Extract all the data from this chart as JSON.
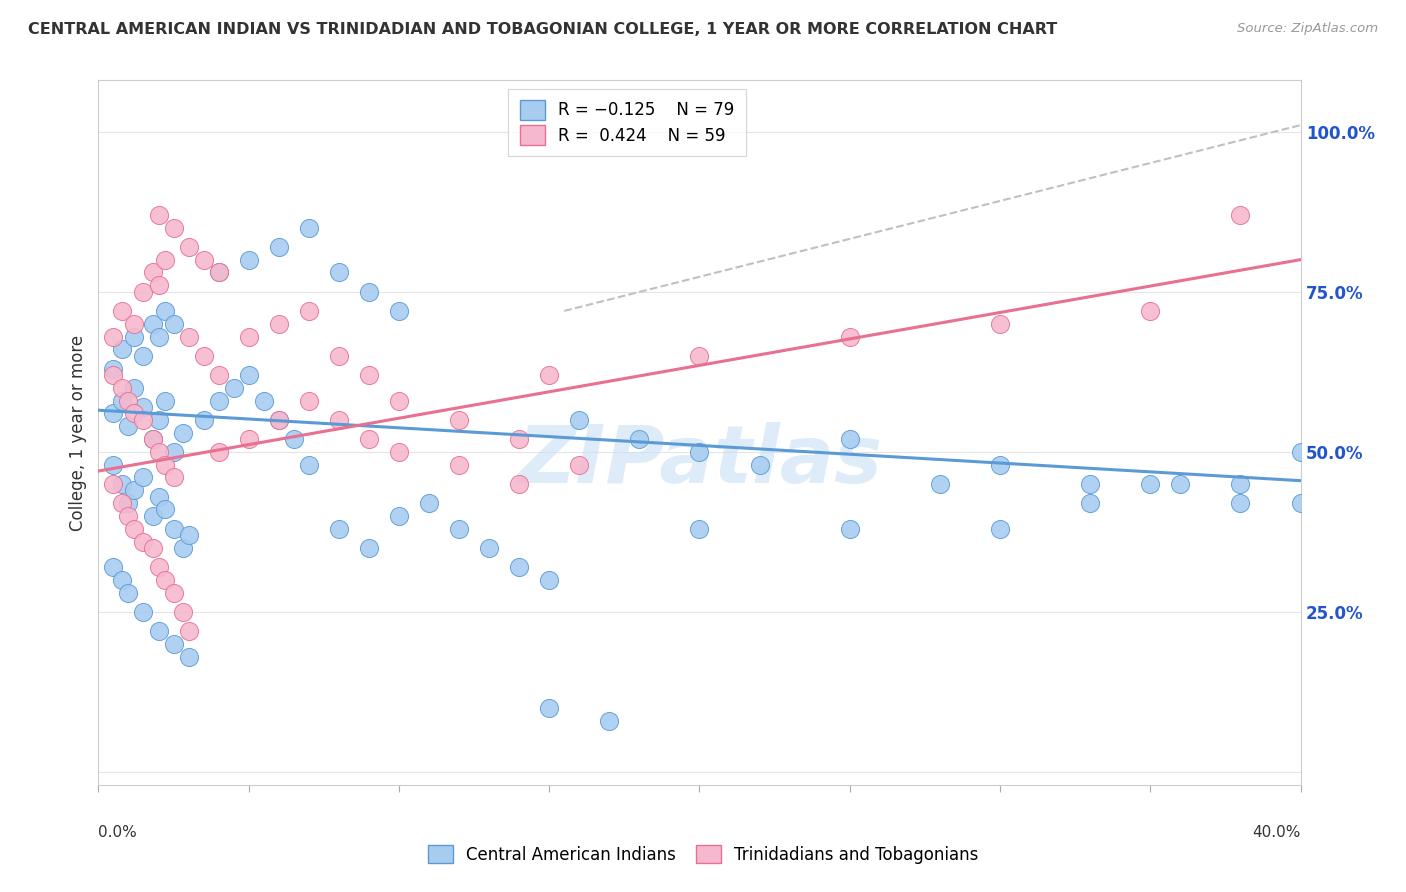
{
  "title": "CENTRAL AMERICAN INDIAN VS TRINIDADIAN AND TOBAGONIAN COLLEGE, 1 YEAR OR MORE CORRELATION CHART",
  "source": "Source: ZipAtlas.com",
  "ylabel": "College, 1 year or more",
  "y_ticks": [
    0.0,
    0.25,
    0.5,
    0.75,
    1.0
  ],
  "y_tick_labels": [
    "",
    "25.0%",
    "50.0%",
    "75.0%",
    "100.0%"
  ],
  "xlim": [
    0.0,
    0.4
  ],
  "ylim": [
    -0.02,
    1.08
  ],
  "color_blue": "#A8CCF0",
  "color_pink": "#F5B8CE",
  "color_blue_line": "#5B9BD5",
  "color_pink_line": "#E87090",
  "color_dashed": "#C0C0C0",
  "blue_line_x0": 0.0,
  "blue_line_y0": 0.565,
  "blue_line_x1": 0.4,
  "blue_line_y1": 0.455,
  "pink_line_x0": 0.0,
  "pink_line_y0": 0.47,
  "pink_line_x1": 0.4,
  "pink_line_y1": 0.8,
  "dashed_line_x0": 0.155,
  "dashed_line_y0": 0.72,
  "dashed_line_x1": 0.4,
  "dashed_line_y1": 1.01,
  "watermark_text": "ZIPatlas",
  "grid_color": "#E5E5E5",
  "blue_scatter_x": [
    0.005,
    0.008,
    0.01,
    0.012,
    0.015,
    0.018,
    0.02,
    0.022,
    0.025,
    0.028,
    0.005,
    0.008,
    0.012,
    0.015,
    0.018,
    0.02,
    0.022,
    0.025,
    0.005,
    0.008,
    0.01,
    0.012,
    0.015,
    0.018,
    0.02,
    0.022,
    0.025,
    0.028,
    0.03,
    0.005,
    0.008,
    0.01,
    0.015,
    0.02,
    0.025,
    0.03,
    0.035,
    0.04,
    0.045,
    0.05,
    0.055,
    0.06,
    0.065,
    0.07,
    0.04,
    0.05,
    0.06,
    0.07,
    0.08,
    0.09,
    0.1,
    0.08,
    0.09,
    0.1,
    0.11,
    0.12,
    0.13,
    0.14,
    0.15,
    0.16,
    0.18,
    0.2,
    0.22,
    0.25,
    0.28,
    0.3,
    0.33,
    0.35,
    0.38,
    0.4,
    0.2,
    0.25,
    0.3,
    0.33,
    0.36,
    0.38,
    0.4,
    0.15,
    0.17
  ],
  "blue_scatter_y": [
    0.56,
    0.58,
    0.54,
    0.6,
    0.57,
    0.52,
    0.55,
    0.58,
    0.5,
    0.53,
    0.63,
    0.66,
    0.68,
    0.65,
    0.7,
    0.68,
    0.72,
    0.7,
    0.48,
    0.45,
    0.42,
    0.44,
    0.46,
    0.4,
    0.43,
    0.41,
    0.38,
    0.35,
    0.37,
    0.32,
    0.3,
    0.28,
    0.25,
    0.22,
    0.2,
    0.18,
    0.55,
    0.58,
    0.6,
    0.62,
    0.58,
    0.55,
    0.52,
    0.48,
    0.78,
    0.8,
    0.82,
    0.85,
    0.78,
    0.75,
    0.72,
    0.38,
    0.35,
    0.4,
    0.42,
    0.38,
    0.35,
    0.32,
    0.3,
    0.55,
    0.52,
    0.5,
    0.48,
    0.52,
    0.45,
    0.48,
    0.45,
    0.45,
    0.45,
    0.5,
    0.38,
    0.38,
    0.38,
    0.42,
    0.45,
    0.42,
    0.42,
    0.1,
    0.08
  ],
  "pink_scatter_x": [
    0.005,
    0.008,
    0.01,
    0.012,
    0.015,
    0.018,
    0.02,
    0.022,
    0.025,
    0.005,
    0.008,
    0.012,
    0.015,
    0.018,
    0.02,
    0.022,
    0.005,
    0.008,
    0.01,
    0.012,
    0.015,
    0.018,
    0.02,
    0.022,
    0.025,
    0.028,
    0.03,
    0.03,
    0.035,
    0.04,
    0.05,
    0.06,
    0.07,
    0.08,
    0.09,
    0.1,
    0.04,
    0.05,
    0.06,
    0.07,
    0.08,
    0.09,
    0.1,
    0.12,
    0.14,
    0.02,
    0.025,
    0.03,
    0.035,
    0.04,
    0.3,
    0.35,
    0.38,
    0.15,
    0.2,
    0.25,
    0.12,
    0.14,
    0.16
  ],
  "pink_scatter_y": [
    0.62,
    0.6,
    0.58,
    0.56,
    0.55,
    0.52,
    0.5,
    0.48,
    0.46,
    0.68,
    0.72,
    0.7,
    0.75,
    0.78,
    0.76,
    0.8,
    0.45,
    0.42,
    0.4,
    0.38,
    0.36,
    0.35,
    0.32,
    0.3,
    0.28,
    0.25,
    0.22,
    0.68,
    0.65,
    0.62,
    0.68,
    0.7,
    0.72,
    0.65,
    0.62,
    0.58,
    0.5,
    0.52,
    0.55,
    0.58,
    0.55,
    0.52,
    0.5,
    0.48,
    0.45,
    0.87,
    0.85,
    0.82,
    0.8,
    0.78,
    0.7,
    0.72,
    0.87,
    0.62,
    0.65,
    0.68,
    0.55,
    0.52,
    0.48
  ]
}
